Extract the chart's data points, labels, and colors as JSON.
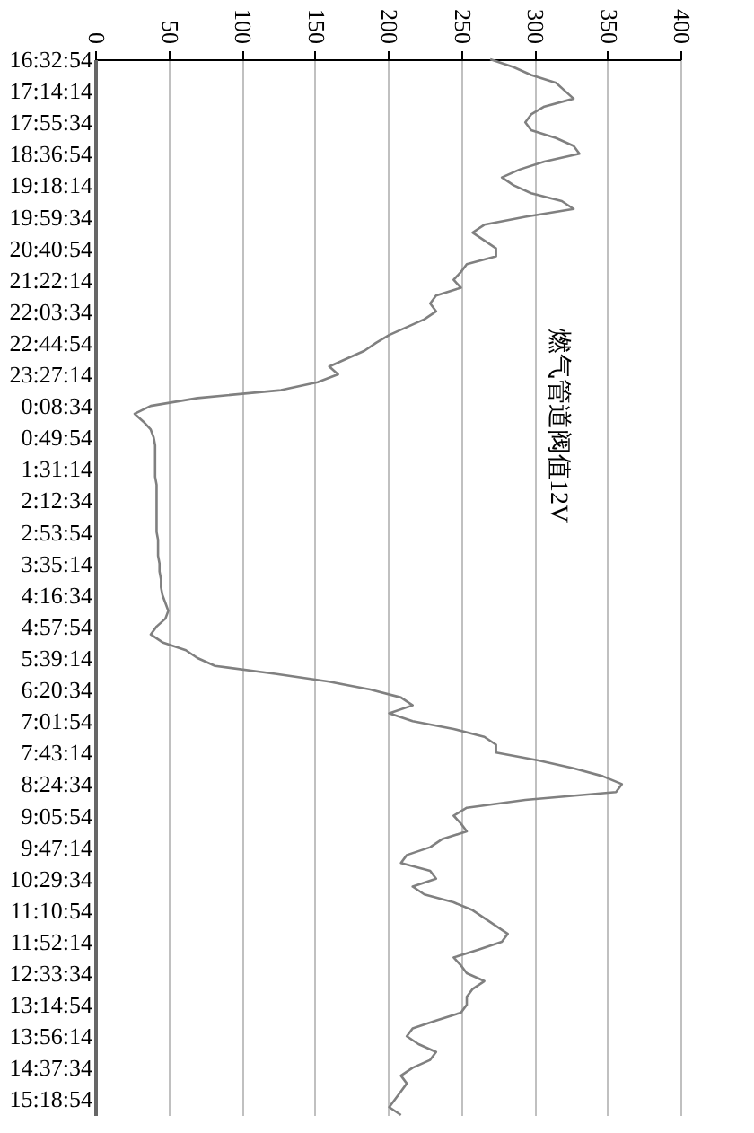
{
  "chart_data": {
    "type": "line",
    "orientation": "horizontal",
    "categories": [
      "16:32:54",
      null,
      null,
      null,
      "17:14:14",
      null,
      null,
      null,
      "17:55:34",
      null,
      null,
      null,
      "18:36:54",
      null,
      null,
      null,
      "19:18:14",
      null,
      null,
      null,
      "19:59:34",
      null,
      null,
      null,
      "20:40:54",
      null,
      null,
      null,
      "21:22:14",
      null,
      null,
      null,
      "22:03:34",
      null,
      null,
      null,
      "22:44:54",
      null,
      null,
      null,
      "23:27:14",
      null,
      null,
      null,
      "0:08:34",
      null,
      null,
      null,
      "0:49:54",
      null,
      null,
      null,
      "1:31:14",
      null,
      null,
      null,
      "2:12:34",
      null,
      null,
      null,
      "2:53:54",
      null,
      null,
      null,
      "3:35:14",
      null,
      null,
      null,
      "4:16:34",
      null,
      null,
      null,
      "4:57:54",
      null,
      null,
      null,
      "5:39:14",
      null,
      null,
      null,
      "6:20:34",
      null,
      null,
      null,
      "7:01:54",
      null,
      null,
      null,
      "7:43:14",
      null,
      null,
      null,
      "8:24:34",
      null,
      null,
      null,
      "9:05:54",
      null,
      null,
      null,
      "9:47:14",
      null,
      null,
      null,
      "10:29:34",
      null,
      null,
      null,
      "11:10:54",
      null,
      null,
      null,
      "11:52:14",
      null,
      null,
      null,
      "12:33:34",
      null,
      null,
      null,
      "13:14:54",
      null,
      null,
      null,
      "13:56:14",
      null,
      null,
      null,
      "14:37:34",
      null,
      null,
      null,
      "15:18:54",
      null,
      null
    ],
    "series": [
      {
        "name": "燃气管道阀值12V",
        "color": "#808080",
        "values": [
          270,
          286,
          298,
          315,
          321,
          327,
          307,
          298,
          294,
          298,
          315,
          327,
          331,
          307,
          290,
          278,
          286,
          298,
          319,
          327,
          294,
          266,
          258,
          266,
          274,
          274,
          254,
          250,
          245,
          250,
          233,
          229,
          233,
          225,
          213,
          201,
          192,
          184,
          172,
          160,
          166,
          152,
          127,
          70,
          38,
          27,
          33,
          38,
          40,
          41,
          41,
          41,
          41,
          41,
          42,
          42,
          42,
          42,
          42,
          42,
          42,
          43,
          43,
          43,
          44,
          44,
          45,
          45,
          46,
          48,
          50,
          48,
          42,
          38,
          46,
          62,
          70,
          82,
          123,
          160,
          188,
          209,
          217,
          201,
          217,
          245,
          266,
          274,
          274,
          303,
          327,
          347,
          360,
          356,
          294,
          254,
          245,
          250,
          254,
          237,
          229,
          213,
          209,
          229,
          233,
          217,
          225,
          245,
          258,
          266,
          274,
          282,
          278,
          262,
          245,
          250,
          254,
          266,
          258,
          254,
          254,
          250,
          233,
          217,
          213,
          221,
          233,
          229,
          217,
          209,
          213,
          209,
          205,
          201,
          209
        ]
      }
    ],
    "xlim": [
      0,
      400
    ],
    "xticks": [
      0,
      50,
      100,
      150,
      200,
      250,
      300,
      350,
      400
    ],
    "grid": "x"
  }
}
